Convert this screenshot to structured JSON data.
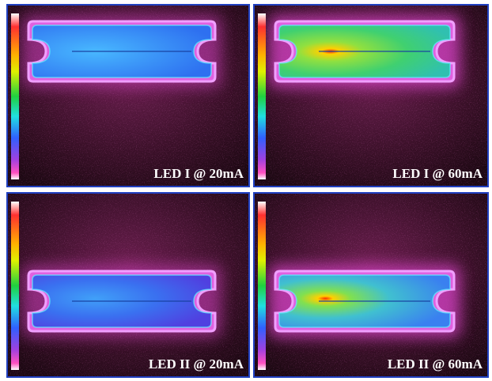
{
  "panels": [
    {
      "label": "LED I @ 20mA"
    },
    {
      "label": "LED I @ 60mA"
    },
    {
      "label": "LED II @ 20mA"
    },
    {
      "label": "LED II @ 60mA"
    }
  ]
}
